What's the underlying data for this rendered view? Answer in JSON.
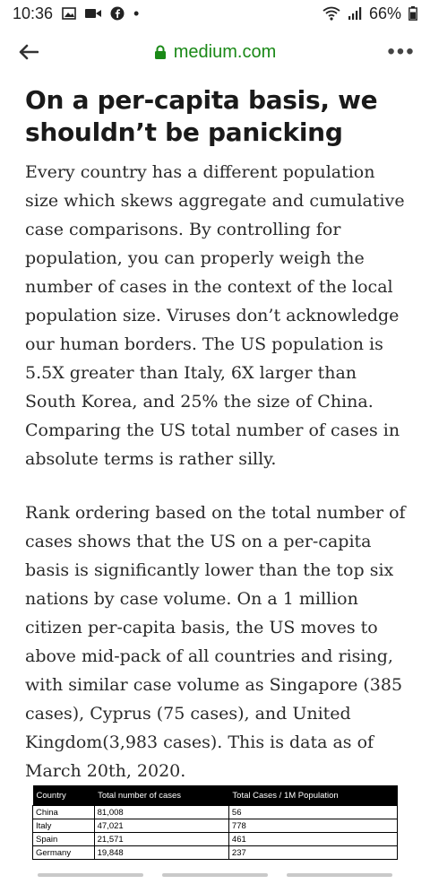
{
  "status_bar": {
    "time": "10:36",
    "dot": "•",
    "battery_text": "66%",
    "icons": [
      "gallery-icon",
      "video-icon",
      "facebook-icon",
      "wifi-icon",
      "signal-icon",
      "battery-icon"
    ]
  },
  "browser": {
    "url": "medium.com",
    "url_color": "#1a8917",
    "more_label": "•••"
  },
  "article": {
    "title": "On a per-capita basis, we shouldn’t be panicking",
    "paragraphs": [
      "Every country has a different population size which skews aggregate and cumulative case comparisons. By controlling for population, you can properly weigh the number of cases in the context of the local population size. Viruses don’t acknowledge our human borders. The US population is 5.5X greater than Italy, 6X larger than South Korea, and 25% the size of China. Comparing the US total number of cases in absolute terms is rather silly.",
      "Rank ordering based on the total number of cases shows that the US on a per-capita basis is significantly lower than the top six nations by case volume. On a 1 million citizen per-capita basis, the US moves to above mid-pack of all countries and rising, with similar case volume as Singapore (385 cases), Cyprus (75 cases), and United Kingdom(3,983 cases). This is data as of March 20th, 2020."
    ]
  },
  "table": {
    "headers": [
      "Country",
      "Total number of cases",
      "Total Cases / 1M Population"
    ],
    "rows": [
      [
        "China",
        "81,008",
        "56"
      ],
      [
        "Italy",
        "47,021",
        "778"
      ],
      [
        "Spain",
        "21,571",
        "461"
      ],
      [
        "Germany",
        "19,848",
        "237"
      ]
    ]
  }
}
